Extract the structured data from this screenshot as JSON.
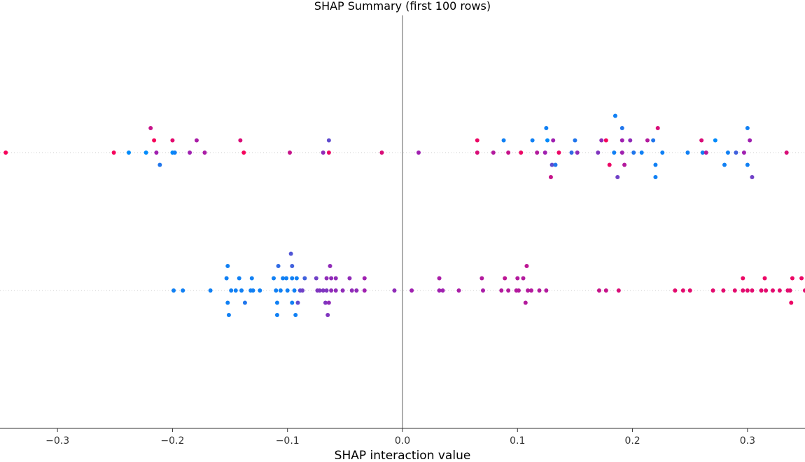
{
  "chart_data": {
    "type": "scatter",
    "title": "SHAP Summary (first 100 rows)",
    "xlabel": "SHAP interaction value",
    "ylabel": "",
    "xlim": [
      -0.35,
      0.35
    ],
    "x_ticks": [
      -0.3,
      -0.2,
      -0.1,
      0.0,
      0.1,
      0.2,
      0.3
    ],
    "x_tick_labels": [
      "−0.3",
      "−0.2",
      "−0.1",
      "0.0",
      "0.1",
      "0.2",
      "0.3"
    ],
    "zero_line": true,
    "grid": false,
    "colors": {
      "low": "#008bfb",
      "mid": "#a020b0",
      "high": "#ff0052",
      "zero_line": "#999999",
      "row_line": "#cccccc",
      "axis": "#333333"
    },
    "rows": [
      {
        "points": [
          {
            "x": -0.345,
            "off": 0,
            "c": 0.95
          },
          {
            "x": -0.251,
            "off": 0,
            "c": 0.95
          },
          {
            "x": -0.238,
            "off": 0,
            "c": 0.0
          },
          {
            "x": -0.223,
            "off": 0,
            "c": 0.0
          },
          {
            "x": -0.219,
            "off": 2,
            "c": 0.7
          },
          {
            "x": -0.216,
            "off": 1,
            "c": 0.95
          },
          {
            "x": -0.214,
            "off": 0,
            "c": 0.5
          },
          {
            "x": -0.211,
            "off": -1,
            "c": 0.1
          },
          {
            "x": -0.2,
            "off": 1,
            "c": 0.85
          },
          {
            "x": -0.2,
            "off": 0,
            "c": 0.0
          },
          {
            "x": -0.198,
            "off": 0,
            "c": 0.05
          },
          {
            "x": -0.185,
            "off": 0,
            "c": 0.5
          },
          {
            "x": -0.179,
            "off": 1,
            "c": 0.55
          },
          {
            "x": -0.172,
            "off": 0,
            "c": 0.55
          },
          {
            "x": -0.141,
            "off": 1,
            "c": 0.8
          },
          {
            "x": -0.138,
            "off": 0,
            "c": 0.95
          },
          {
            "x": -0.098,
            "off": 0,
            "c": 0.7
          },
          {
            "x": -0.069,
            "off": 0,
            "c": 0.45
          },
          {
            "x": -0.064,
            "off": 1,
            "c": 0.3
          },
          {
            "x": -0.064,
            "off": 0,
            "c": 0.9
          },
          {
            "x": -0.018,
            "off": 0,
            "c": 0.8
          },
          {
            "x": 0.014,
            "off": 0,
            "c": 0.5
          },
          {
            "x": 0.065,
            "off": 1,
            "c": 0.9
          },
          {
            "x": 0.065,
            "off": 0,
            "c": 0.8
          },
          {
            "x": 0.079,
            "off": 0,
            "c": 0.6
          },
          {
            "x": 0.088,
            "off": 1,
            "c": 0.05
          },
          {
            "x": 0.092,
            "off": 0,
            "c": 0.7
          },
          {
            "x": 0.103,
            "off": 0,
            "c": 0.9
          },
          {
            "x": 0.113,
            "off": 1,
            "c": 0.05
          },
          {
            "x": 0.117,
            "off": 0,
            "c": 0.6
          },
          {
            "x": 0.124,
            "off": 0,
            "c": 0.5
          },
          {
            "x": 0.125,
            "off": 2,
            "c": 0.05
          },
          {
            "x": 0.126,
            "off": 1,
            "c": 0.0
          },
          {
            "x": 0.13,
            "off": -1,
            "c": 0.3
          },
          {
            "x": 0.129,
            "off": -2,
            "c": 0.7
          },
          {
            "x": 0.131,
            "off": 1,
            "c": 0.5
          },
          {
            "x": 0.133,
            "off": -1,
            "c": 0.1
          },
          {
            "x": 0.136,
            "off": 0,
            "c": 0.9
          },
          {
            "x": 0.147,
            "off": 0,
            "c": 0.15
          },
          {
            "x": 0.15,
            "off": 1,
            "c": 0.1
          },
          {
            "x": 0.152,
            "off": 0,
            "c": 0.45
          },
          {
            "x": 0.17,
            "off": 0,
            "c": 0.4
          },
          {
            "x": 0.173,
            "off": 1,
            "c": 0.45
          },
          {
            "x": 0.177,
            "off": 1,
            "c": 0.95
          },
          {
            "x": 0.18,
            "off": -1,
            "c": 0.9
          },
          {
            "x": 0.185,
            "off": 3,
            "c": 0.05
          },
          {
            "x": 0.184,
            "off": 0,
            "c": 0.05
          },
          {
            "x": 0.187,
            "off": -2,
            "c": 0.35
          },
          {
            "x": 0.191,
            "off": 2,
            "c": 0.1
          },
          {
            "x": 0.191,
            "off": 1,
            "c": 0.5
          },
          {
            "x": 0.191,
            "off": 0,
            "c": 0.5
          },
          {
            "x": 0.193,
            "off": -1,
            "c": 0.6
          },
          {
            "x": 0.198,
            "off": 1,
            "c": 0.45
          },
          {
            "x": 0.201,
            "off": 0,
            "c": 0.1
          },
          {
            "x": 0.208,
            "off": 0,
            "c": 0.05
          },
          {
            "x": 0.213,
            "off": 1,
            "c": 0.6
          },
          {
            "x": 0.218,
            "off": 1,
            "c": 0.1
          },
          {
            "x": 0.22,
            "off": -1,
            "c": 0.05
          },
          {
            "x": 0.22,
            "off": -2,
            "c": 0.05
          },
          {
            "x": 0.222,
            "off": 2,
            "c": 0.8
          },
          {
            "x": 0.226,
            "off": 0,
            "c": 0.05
          },
          {
            "x": 0.248,
            "off": 0,
            "c": 0.05
          },
          {
            "x": 0.26,
            "off": 1,
            "c": 0.8
          },
          {
            "x": 0.261,
            "off": 0,
            "c": 0.05
          },
          {
            "x": 0.264,
            "off": 0,
            "c": 0.6
          },
          {
            "x": 0.272,
            "off": 1,
            "c": 0.0
          },
          {
            "x": 0.28,
            "off": -1,
            "c": 0.05
          },
          {
            "x": 0.283,
            "off": 0,
            "c": 0.05
          },
          {
            "x": 0.29,
            "off": 0,
            "c": 0.2
          },
          {
            "x": 0.297,
            "off": 0,
            "c": 0.5
          },
          {
            "x": 0.3,
            "off": 2,
            "c": 0.05
          },
          {
            "x": 0.3,
            "off": -1,
            "c": 0.05
          },
          {
            "x": 0.302,
            "off": 1,
            "c": 0.5
          },
          {
            "x": 0.304,
            "off": -2,
            "c": 0.35
          },
          {
            "x": 0.334,
            "off": 0,
            "c": 0.8
          }
        ]
      },
      {
        "points": [
          {
            "x": -0.199,
            "off": 0,
            "c": 0.05
          },
          {
            "x": -0.191,
            "off": 0,
            "c": 0.05
          },
          {
            "x": -0.167,
            "off": 0,
            "c": 0.05
          },
          {
            "x": -0.153,
            "off": 1,
            "c": 0.05
          },
          {
            "x": -0.152,
            "off": 2,
            "c": 0.05
          },
          {
            "x": -0.152,
            "off": -1,
            "c": 0.05
          },
          {
            "x": -0.151,
            "off": -2,
            "c": 0.05
          },
          {
            "x": -0.149,
            "off": 0,
            "c": 0.05
          },
          {
            "x": -0.145,
            "off": 0,
            "c": 0.05
          },
          {
            "x": -0.142,
            "off": 1,
            "c": 0.05
          },
          {
            "x": -0.14,
            "off": 0,
            "c": 0.05
          },
          {
            "x": -0.137,
            "off": -1,
            "c": 0.1
          },
          {
            "x": -0.132,
            "off": 0,
            "c": 0.05
          },
          {
            "x": -0.131,
            "off": 1,
            "c": 0.05
          },
          {
            "x": -0.13,
            "off": 0,
            "c": 0.05
          },
          {
            "x": -0.124,
            "off": 0,
            "c": 0.05
          },
          {
            "x": -0.112,
            "off": 1,
            "c": 0.05
          },
          {
            "x": -0.11,
            "off": 0,
            "c": 0.05
          },
          {
            "x": -0.109,
            "off": -1,
            "c": 0.05
          },
          {
            "x": -0.109,
            "off": -2,
            "c": 0.05
          },
          {
            "x": -0.108,
            "off": 2,
            "c": 0.15
          },
          {
            "x": -0.106,
            "off": 0,
            "c": 0.05
          },
          {
            "x": -0.104,
            "off": 1,
            "c": 0.05
          },
          {
            "x": -0.101,
            "off": 1,
            "c": 0.05
          },
          {
            "x": -0.1,
            "off": 0,
            "c": 0.05
          },
          {
            "x": -0.097,
            "off": 3,
            "c": 0.25
          },
          {
            "x": -0.096,
            "off": 2,
            "c": 0.2
          },
          {
            "x": -0.096,
            "off": 1,
            "c": 0.05
          },
          {
            "x": -0.096,
            "off": -1,
            "c": 0.05
          },
          {
            "x": -0.094,
            "off": 0,
            "c": 0.05
          },
          {
            "x": -0.093,
            "off": -2,
            "c": 0.05
          },
          {
            "x": -0.092,
            "off": 1,
            "c": 0.05
          },
          {
            "x": -0.091,
            "off": -1,
            "c": 0.3
          },
          {
            "x": -0.089,
            "off": 0,
            "c": 0.3
          },
          {
            "x": -0.087,
            "off": 0,
            "c": 0.35
          },
          {
            "x": -0.085,
            "off": 1,
            "c": 0.2
          },
          {
            "x": -0.075,
            "off": 1,
            "c": 0.35
          },
          {
            "x": -0.074,
            "off": 0,
            "c": 0.4
          },
          {
            "x": -0.072,
            "off": 0,
            "c": 0.4
          },
          {
            "x": -0.069,
            "off": 0,
            "c": 0.4
          },
          {
            "x": -0.067,
            "off": -1,
            "c": 0.4
          },
          {
            "x": -0.066,
            "off": 1,
            "c": 0.45
          },
          {
            "x": -0.066,
            "off": 0,
            "c": 0.4
          },
          {
            "x": -0.065,
            "off": -2,
            "c": 0.4
          },
          {
            "x": -0.064,
            "off": -1,
            "c": 0.45
          },
          {
            "x": -0.063,
            "off": 2,
            "c": 0.45
          },
          {
            "x": -0.062,
            "off": 1,
            "c": 0.45
          },
          {
            "x": -0.062,
            "off": 0,
            "c": 0.45
          },
          {
            "x": -0.058,
            "off": 1,
            "c": 0.45
          },
          {
            "x": -0.058,
            "off": 0,
            "c": 0.45
          },
          {
            "x": -0.052,
            "off": 0,
            "c": 0.45
          },
          {
            "x": -0.046,
            "off": 1,
            "c": 0.45
          },
          {
            "x": -0.044,
            "off": 0,
            "c": 0.45
          },
          {
            "x": -0.04,
            "off": 0,
            "c": 0.45
          },
          {
            "x": -0.033,
            "off": 1,
            "c": 0.5
          },
          {
            "x": -0.033,
            "off": 0,
            "c": 0.5
          },
          {
            "x": -0.007,
            "off": 0,
            "c": 0.45
          },
          {
            "x": 0.008,
            "off": 0,
            "c": 0.5
          },
          {
            "x": 0.032,
            "off": 1,
            "c": 0.55
          },
          {
            "x": 0.032,
            "off": 0,
            "c": 0.5
          },
          {
            "x": 0.035,
            "off": 0,
            "c": 0.5
          },
          {
            "x": 0.049,
            "off": 0,
            "c": 0.55
          },
          {
            "x": 0.069,
            "off": 1,
            "c": 0.6
          },
          {
            "x": 0.07,
            "off": 0,
            "c": 0.55
          },
          {
            "x": 0.086,
            "off": 0,
            "c": 0.6
          },
          {
            "x": 0.089,
            "off": 1,
            "c": 0.65
          },
          {
            "x": 0.092,
            "off": 0,
            "c": 0.6
          },
          {
            "x": 0.099,
            "off": 0,
            "c": 0.6
          },
          {
            "x": 0.1,
            "off": 1,
            "c": 0.6
          },
          {
            "x": 0.101,
            "off": 0,
            "c": 0.6
          },
          {
            "x": 0.105,
            "off": 1,
            "c": 0.6
          },
          {
            "x": 0.107,
            "off": -1,
            "c": 0.6
          },
          {
            "x": 0.108,
            "off": 2,
            "c": 0.65
          },
          {
            "x": 0.109,
            "off": 0,
            "c": 0.6
          },
          {
            "x": 0.112,
            "off": 0,
            "c": 0.6
          },
          {
            "x": 0.119,
            "off": 0,
            "c": 0.6
          },
          {
            "x": 0.125,
            "off": 0,
            "c": 0.6
          },
          {
            "x": 0.171,
            "off": 0,
            "c": 0.7
          },
          {
            "x": 0.177,
            "off": 0,
            "c": 0.7
          },
          {
            "x": 0.188,
            "off": 0,
            "c": 0.8
          },
          {
            "x": 0.237,
            "off": 0,
            "c": 0.85
          },
          {
            "x": 0.244,
            "off": 0,
            "c": 0.85
          },
          {
            "x": 0.25,
            "off": 0,
            "c": 0.85
          },
          {
            "x": 0.27,
            "off": 0,
            "c": 0.85
          },
          {
            "x": 0.279,
            "off": 0,
            "c": 0.85
          },
          {
            "x": 0.289,
            "off": 0,
            "c": 0.85
          },
          {
            "x": 0.296,
            "off": 1,
            "c": 0.9
          },
          {
            "x": 0.296,
            "off": 0,
            "c": 0.85
          },
          {
            "x": 0.3,
            "off": 0,
            "c": 0.85
          },
          {
            "x": 0.304,
            "off": 0,
            "c": 0.85
          },
          {
            "x": 0.312,
            "off": 0,
            "c": 0.85
          },
          {
            "x": 0.315,
            "off": 1,
            "c": 0.9
          },
          {
            "x": 0.316,
            "off": 0,
            "c": 0.85
          },
          {
            "x": 0.322,
            "off": 0,
            "c": 0.85
          },
          {
            "x": 0.328,
            "off": 0,
            "c": 0.85
          },
          {
            "x": 0.335,
            "off": 0,
            "c": 0.85
          },
          {
            "x": 0.337,
            "off": 0,
            "c": 0.85
          },
          {
            "x": 0.338,
            "off": -1,
            "c": 0.9
          },
          {
            "x": 0.339,
            "off": 1,
            "c": 0.9
          },
          {
            "x": 0.347,
            "off": 1,
            "c": 0.9
          },
          {
            "x": 0.35,
            "off": 0,
            "c": 0.85
          }
        ]
      }
    ]
  }
}
